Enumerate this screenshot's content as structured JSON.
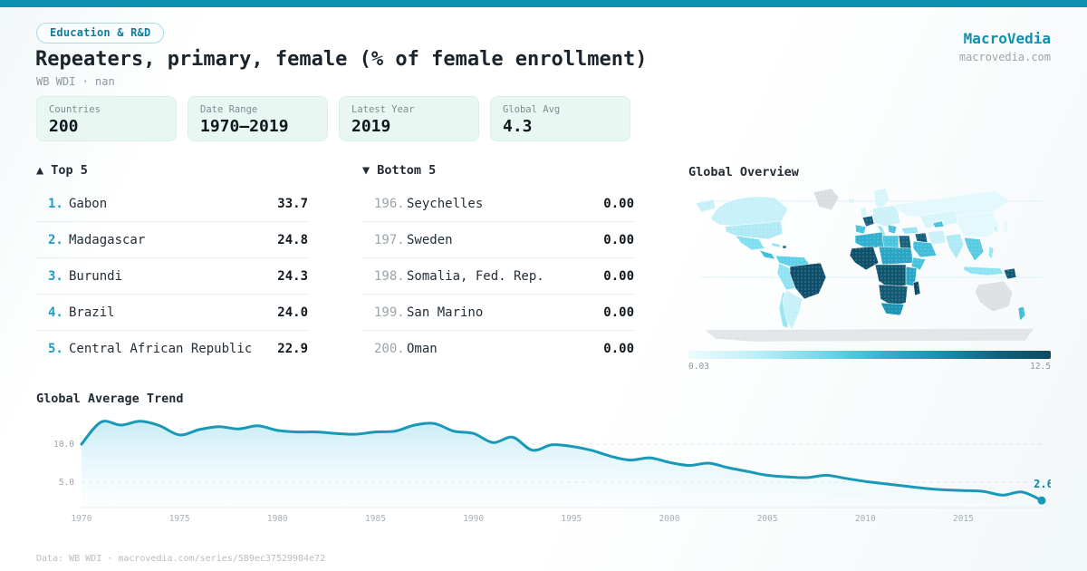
{
  "brand": {
    "name": "MacroVedia",
    "domain": "macrovedia.com",
    "accent_color": "#0c91ae"
  },
  "header": {
    "category_badge": "Education & R&D",
    "title": "Repeaters, primary, female (% of female enrollment)",
    "subtitle": "WB WDI · nan"
  },
  "stats": [
    {
      "label": "Countries",
      "value": "200"
    },
    {
      "label": "Date Range",
      "value": "1970—2019"
    },
    {
      "label": "Latest Year",
      "value": "2019"
    },
    {
      "label": "Global Avg",
      "value": "4.3"
    }
  ],
  "top5": {
    "header": "▲ Top 5",
    "rows": [
      {
        "rank": "1.",
        "name": "Gabon",
        "value": "33.7"
      },
      {
        "rank": "2.",
        "name": "Madagascar",
        "value": "24.8"
      },
      {
        "rank": "3.",
        "name": "Burundi",
        "value": "24.3"
      },
      {
        "rank": "4.",
        "name": "Brazil",
        "value": "24.0"
      },
      {
        "rank": "5.",
        "name": "Central African Republic",
        "value": "22.9"
      }
    ]
  },
  "bottom5": {
    "header": "▼ Bottom 5",
    "rows": [
      {
        "rank": "196.",
        "name": "Seychelles",
        "value": "0.00"
      },
      {
        "rank": "197.",
        "name": "Sweden",
        "value": "0.00"
      },
      {
        "rank": "198.",
        "name": "Somalia, Fed. Rep.",
        "value": "0.00"
      },
      {
        "rank": "199.",
        "name": "San Marino",
        "value": "0.00"
      },
      {
        "rank": "200.",
        "name": "Oman",
        "value": "0.00"
      }
    ]
  },
  "chart_data": [
    {
      "type": "heatmap",
      "title": "Global Overview",
      "colorbar": {
        "min_label": "0.03",
        "max_label": "12.5",
        "colors": [
          "#eefbfd",
          "#bff0f8",
          "#6fd6ea",
          "#2fb0ce",
          "#1590b0",
          "#11607c",
          "#0d4a63"
        ],
        "no_data_color": "#dde1e4"
      },
      "region_colors": {
        "greenland": "#d9dde0",
        "alaska": "#c7f0f8",
        "canada": "#c7f0f8",
        "usa": "#b0e9f5",
        "mexico": "#7fdef0",
        "central-america": "#3fbcd8",
        "cuba": "#8fe2f2",
        "hispaniola": "#17607c",
        "south-america-north": "#5ed0e8",
        "brazil": "#0e4f6b",
        "peru-bolivia": "#8fe2f2",
        "argentina": "#c7f0f8",
        "chile": "#9ae5f3",
        "iceland": "#d8f5fa",
        "uk": "#d8f5fa",
        "scandinavia": "#d8f5fa",
        "france": "#16607c",
        "iberia": "#49c2db",
        "central-europe": "#cdf1f8",
        "italy": "#9ae5f3",
        "balkans": "#49c2db",
        "russia": "#e3f8fc",
        "turkey": "#9ae5f3",
        "iraq-syria": "#17607c",
        "saudi-arabia": "#40bdd8",
        "iran": "#cdf1f8",
        "central-asia": "#d8f5fa",
        "uzbekistan": "#49c2db",
        "india": "#aee9f5",
        "china": "#e3f8fc",
        "korea": "#cdf1f8",
        "japan": "#e9fafc",
        "se-asia": "#58cbe2",
        "philippines": "#9ae5f3",
        "indonesia": "#8fe2f2",
        "new-guinea": "#145a74",
        "australia": "#dde1e4",
        "new-zealand": "#3fbcd8",
        "maghreb": "#2fb0ce",
        "libya": "#49c2db",
        "egypt": "#19607a",
        "west-africa": "#0f506b",
        "sahel-sudan": "#2aa6c4",
        "horn-of-africa": "#49c2db",
        "central-africa": "#11566f",
        "east-africa": "#2aa6c4",
        "southern-africa": "#145a74",
        "south-africa": "#1d94b4",
        "madagascar": "#0c4a66",
        "antarctica": "#e2e5e8"
      }
    },
    {
      "type": "line",
      "title": "Global Average Trend",
      "x": [
        1970,
        1971,
        1972,
        1973,
        1974,
        1975,
        1976,
        1977,
        1978,
        1979,
        1980,
        1981,
        1982,
        1983,
        1984,
        1985,
        1986,
        1987,
        1988,
        1989,
        1990,
        1991,
        1992,
        1993,
        1994,
        1995,
        1996,
        1997,
        1998,
        1999,
        2000,
        2001,
        2002,
        2003,
        2004,
        2005,
        2006,
        2007,
        2008,
        2009,
        2010,
        2011,
        2012,
        2013,
        2014,
        2015,
        2016,
        2017,
        2018,
        2019
      ],
      "values": [
        10.0,
        12.9,
        12.5,
        13.0,
        12.4,
        11.2,
        11.9,
        12.3,
        12.0,
        12.4,
        11.8,
        11.6,
        11.6,
        11.4,
        11.3,
        11.6,
        11.7,
        12.5,
        12.7,
        11.7,
        11.4,
        10.2,
        10.9,
        9.2,
        9.9,
        9.7,
        9.2,
        8.4,
        7.9,
        8.2,
        7.6,
        7.2,
        7.5,
        6.9,
        6.4,
        5.9,
        5.7,
        5.6,
        5.9,
        5.5,
        5.1,
        4.8,
        4.5,
        4.2,
        4.0,
        3.9,
        3.8,
        3.3,
        3.7,
        2.6
      ],
      "end_label": "2.6",
      "yticks": [
        {
          "label": "10.0",
          "value": 10
        },
        {
          "label": "5.0",
          "value": 5
        }
      ],
      "xticks": [
        1970,
        1975,
        1980,
        1985,
        1990,
        1995,
        2000,
        2005,
        2010,
        2015
      ],
      "xlim": [
        1970,
        2019
      ],
      "grid": "dashed-horizontal",
      "line_color": "#1899b8",
      "end_label_color": "#0d86a6"
    }
  ],
  "footer": {
    "text": "Data: WB WDI · macrovedia.com/series/589ec37529984e72"
  }
}
